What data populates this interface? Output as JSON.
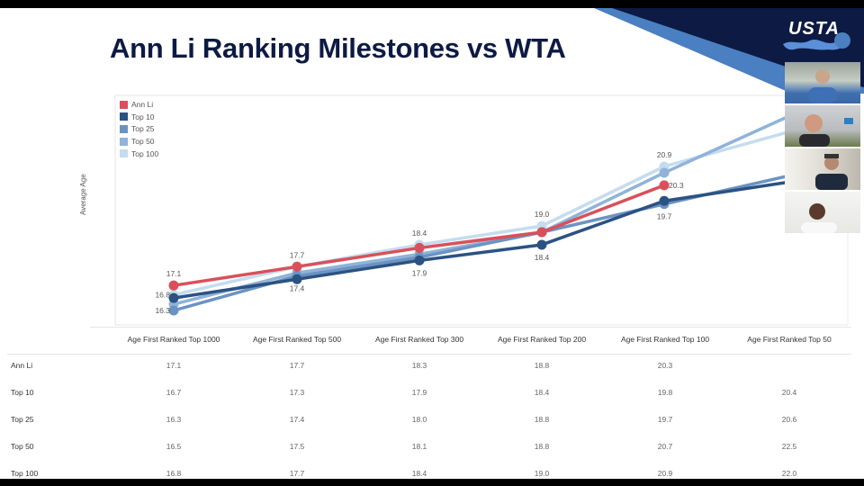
{
  "slide": {
    "title": "Ann Li Ranking Milestones vs WTA",
    "logo_text": "USTA",
    "colors": {
      "navy": "#0c1a44",
      "banner_light": "#4a7fc1",
      "background": "#ffffff"
    }
  },
  "video_participants": [
    {
      "name": "participant-1"
    },
    {
      "name": "participant-2"
    },
    {
      "name": "participant-3"
    },
    {
      "name": "participant-4"
    }
  ],
  "chart_data": {
    "type": "line",
    "title": "Ann Li Ranking Milestones vs WTA",
    "xlabel": "",
    "ylabel": "Average Age",
    "categories": [
      "Age First Ranked Top 1000",
      "Age First Ranked Top 500",
      "Age First Ranked Top 300",
      "Age First Ranked Top 200",
      "Age First Ranked Top 100",
      "Age First Ranked Top 50"
    ],
    "ylim": [
      15.9,
      22.9
    ],
    "grid": false,
    "legend": "top-left",
    "series": [
      {
        "name": "Ann Li",
        "color": "#d9505a",
        "values": [
          17.1,
          17.7,
          18.3,
          18.8,
          20.3,
          null
        ]
      },
      {
        "name": "Top 10",
        "color": "#2b5283",
        "values": [
          16.7,
          17.3,
          17.9,
          18.4,
          19.8,
          20.4
        ]
      },
      {
        "name": "Top 25",
        "color": "#6b93c2",
        "values": [
          16.3,
          17.4,
          18.0,
          18.8,
          19.7,
          20.6
        ]
      },
      {
        "name": "Top 50",
        "color": "#8fb3d9",
        "values": [
          16.5,
          17.5,
          18.1,
          18.8,
          20.7,
          22.5
        ]
      },
      {
        "name": "Top 100",
        "color": "#c5dcef",
        "values": [
          16.8,
          17.7,
          18.4,
          19.0,
          20.9,
          22.0
        ]
      }
    ],
    "annotations": [
      {
        "series": "Ann Li",
        "category": 0,
        "label": "17.1",
        "pos": "above"
      },
      {
        "series": "Top 100",
        "category": 0,
        "label": "16.8",
        "pos": "left"
      },
      {
        "series": "Top 25",
        "category": 0,
        "label": "16.3",
        "pos": "left"
      },
      {
        "series": "Ann Li",
        "category": 1,
        "label": "17.7",
        "pos": "above"
      },
      {
        "series": "Top 25",
        "category": 1,
        "label": "17.4",
        "pos": "below"
      },
      {
        "series": "Top 100",
        "category": 2,
        "label": "18.4",
        "pos": "above"
      },
      {
        "series": "Top 10",
        "category": 2,
        "label": "17.9",
        "pos": "below"
      },
      {
        "series": "Top 100",
        "category": 3,
        "label": "19.0",
        "pos": "above"
      },
      {
        "series": "Top 10",
        "category": 3,
        "label": "18.4",
        "pos": "below"
      },
      {
        "series": "Top 100",
        "category": 4,
        "label": "20.9",
        "pos": "above"
      },
      {
        "series": "Ann Li",
        "category": 4,
        "label": "20.3",
        "pos": "right"
      },
      {
        "series": "Top 25",
        "category": 4,
        "label": "19.7",
        "pos": "below"
      }
    ]
  },
  "table": {
    "columns": [
      "Age First Ranked Top 1000",
      "Age First Ranked Top 500",
      "Age First Ranked Top 300",
      "Age First Ranked Top 200",
      "Age First Ranked Top 100",
      "Age First Ranked Top 50"
    ],
    "rows": [
      {
        "label": "Ann Li",
        "values": [
          "17.1",
          "17.7",
          "18.3",
          "18.8",
          "20.3",
          ""
        ]
      },
      {
        "label": "Top 10",
        "values": [
          "16.7",
          "17.3",
          "17.9",
          "18.4",
          "19.8",
          "20.4"
        ]
      },
      {
        "label": "Top 25",
        "values": [
          "16.3",
          "17.4",
          "18.0",
          "18.8",
          "19.7",
          "20.6"
        ]
      },
      {
        "label": "Top 50",
        "values": [
          "16.5",
          "17.5",
          "18.1",
          "18.8",
          "20.7",
          "22.5"
        ]
      },
      {
        "label": "Top 100",
        "values": [
          "16.8",
          "17.7",
          "18.4",
          "19.0",
          "20.9",
          "22.0"
        ]
      }
    ]
  }
}
